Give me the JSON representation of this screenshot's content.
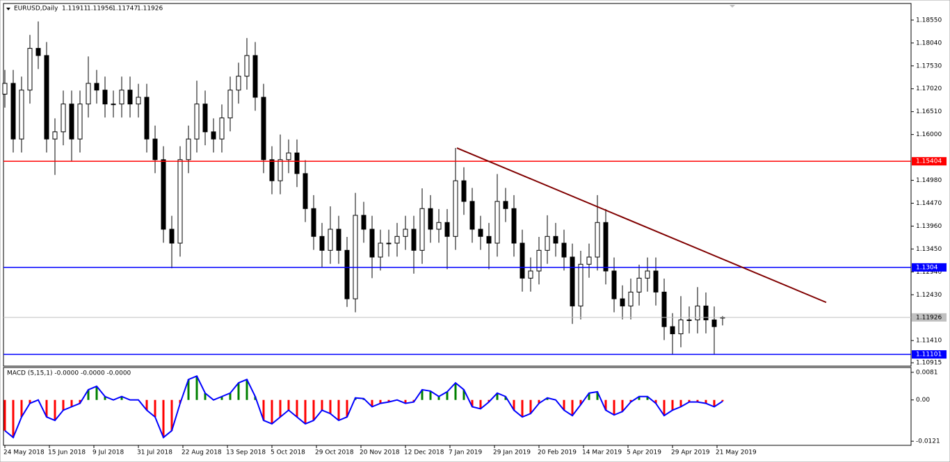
{
  "chart_data": [
    {
      "type": "candlestick",
      "symbol_label": "EURUSD,Daily",
      "x": [
        0,
        3,
        6,
        9,
        12,
        15,
        18,
        21,
        24,
        27,
        30,
        33,
        36,
        39,
        42,
        45,
        48,
        51,
        54,
        57,
        60,
        63,
        66,
        69,
        72,
        75,
        78,
        81,
        84,
        87,
        90,
        93,
        96,
        99,
        102,
        105,
        108,
        111,
        114,
        117,
        120,
        123,
        126,
        129,
        132,
        135,
        138,
        141,
        144,
        147,
        150,
        153,
        156,
        159,
        162,
        165,
        168,
        171,
        174,
        177,
        180,
        183,
        186,
        189,
        192,
        195,
        198,
        201,
        204,
        207,
        210,
        213,
        216,
        219,
        222,
        225,
        228,
        231,
        234,
        237,
        240,
        243,
        246,
        249,
        252,
        255,
        258
      ],
      "open": [
        1.169,
        1.1714,
        1.159,
        1.1699,
        1.1792,
        1.1776,
        1.159,
        1.1606,
        1.1668,
        1.159,
        1.1668,
        1.1714,
        1.1699,
        1.1668,
        1.1668,
        1.1699,
        1.1668,
        1.1683,
        1.159,
        1.1544,
        1.1389,
        1.1358,
        1.1544,
        1.159,
        1.1668,
        1.1606,
        1.159,
        1.1637,
        1.1699,
        1.173,
        1.1776,
        1.1683,
        1.1544,
        1.1497,
        1.1544,
        1.1559,
        1.1513,
        1.1435,
        1.1373,
        1.1342,
        1.1389,
        1.1342,
        1.1234,
        1.142,
        1.1389,
        1.1327,
        1.1358,
        1.1358,
        1.1373,
        1.1389,
        1.1342,
        1.1435,
        1.1389,
        1.1404,
        1.1373,
        1.1497,
        1.1451,
        1.1389,
        1.1373,
        1.1358,
        1.1451,
        1.1435,
        1.1358,
        1.128,
        1.1296,
        1.1342,
        1.1373,
        1.1358,
        1.1327,
        1.1218,
        1.1311,
        1.1327,
        1.1404,
        1.1296,
        1.1234,
        1.1218,
        1.1249,
        1.128,
        1.1296,
        1.1249,
        1.1172,
        1.1156,
        1.1187,
        1.1187,
        1.1218,
        1.1187,
        1.11911
      ],
      "high": [
        1.1744,
        1.1744,
        1.1729,
        1.1822,
        1.1852,
        1.1806,
        1.1636,
        1.1698,
        1.1698,
        1.1698,
        1.1774,
        1.1744,
        1.1729,
        1.1698,
        1.1729,
        1.1729,
        1.1713,
        1.1713,
        1.162,
        1.1574,
        1.1419,
        1.1574,
        1.162,
        1.172,
        1.1698,
        1.1636,
        1.1667,
        1.1729,
        1.176,
        1.1815,
        1.1806,
        1.1713,
        1.1574,
        1.16,
        1.1589,
        1.1589,
        1.1543,
        1.1465,
        1.1403,
        1.144,
        1.1419,
        1.1372,
        1.147,
        1.145,
        1.1419,
        1.1388,
        1.1388,
        1.1403,
        1.1419,
        1.1419,
        1.148,
        1.1465,
        1.1434,
        1.1434,
        1.157,
        1.1527,
        1.1481,
        1.1419,
        1.1403,
        1.1512,
        1.1481,
        1.1465,
        1.1388,
        1.1326,
        1.1372,
        1.142,
        1.1403,
        1.1388,
        1.1357,
        1.1341,
        1.1357,
        1.1465,
        1.1434,
        1.1326,
        1.1264,
        1.1279,
        1.131,
        1.1326,
        1.1326,
        1.1279,
        1.1202,
        1.124,
        1.1217,
        1.126,
        1.1248,
        1.1217,
        1.11956
      ],
      "low": [
        1.166,
        1.156,
        1.156,
        1.1669,
        1.1746,
        1.156,
        1.151,
        1.1576,
        1.154,
        1.156,
        1.1638,
        1.1669,
        1.1638,
        1.1638,
        1.1638,
        1.1638,
        1.1638,
        1.156,
        1.1514,
        1.1359,
        1.1302,
        1.1328,
        1.1514,
        1.156,
        1.1576,
        1.156,
        1.156,
        1.1607,
        1.1669,
        1.17,
        1.1653,
        1.1514,
        1.1467,
        1.1467,
        1.1514,
        1.1483,
        1.1405,
        1.1343,
        1.1304,
        1.1312,
        1.1312,
        1.1216,
        1.1204,
        1.1359,
        1.128,
        1.1297,
        1.1328,
        1.1328,
        1.1343,
        1.129,
        1.1312,
        1.1359,
        1.1359,
        1.13,
        1.1343,
        1.1421,
        1.1359,
        1.1343,
        1.13,
        1.1328,
        1.1405,
        1.1328,
        1.125,
        1.125,
        1.1266,
        1.1312,
        1.1328,
        1.1297,
        1.1178,
        1.1188,
        1.1281,
        1.1297,
        1.1266,
        1.1204,
        1.1188,
        1.1188,
        1.1219,
        1.125,
        1.1219,
        1.1142,
        1.111,
        1.1126,
        1.1157,
        1.1157,
        1.1157,
        1.111,
        1.11747
      ],
      "close": [
        1.1714,
        1.159,
        1.1699,
        1.1792,
        1.1776,
        1.159,
        1.1606,
        1.1668,
        1.159,
        1.1668,
        1.1714,
        1.1699,
        1.1668,
        1.1668,
        1.1699,
        1.1668,
        1.1683,
        1.159,
        1.1544,
        1.1389,
        1.1358,
        1.1544,
        1.159,
        1.1668,
        1.1606,
        1.159,
        1.1637,
        1.1699,
        1.173,
        1.1776,
        1.1683,
        1.1544,
        1.1497,
        1.1544,
        1.1559,
        1.1513,
        1.1435,
        1.1373,
        1.1342,
        1.1389,
        1.1342,
        1.1234,
        1.142,
        1.1389,
        1.1327,
        1.1358,
        1.1358,
        1.1373,
        1.1389,
        1.1342,
        1.1435,
        1.1389,
        1.1404,
        1.1373,
        1.1497,
        1.1451,
        1.1389,
        1.1373,
        1.1358,
        1.1451,
        1.1435,
        1.1358,
        1.128,
        1.1296,
        1.1342,
        1.1373,
        1.1358,
        1.1327,
        1.1218,
        1.1311,
        1.1327,
        1.1404,
        1.1296,
        1.1234,
        1.1218,
        1.1249,
        1.128,
        1.1296,
        1.1249,
        1.1172,
        1.1156,
        1.1187,
        1.1187,
        1.1218,
        1.1187,
        1.1172,
        1.11926
      ],
      "up_color": "#ffffff",
      "down_color": "#000000",
      "last_price_color": "#c0c0c0",
      "xlim": [
        -0.5,
        325.75
      ],
      "xticks": [
        {
          "value": 0,
          "label": "24 May 2018"
        },
        {
          "value": 16,
          "label": "15 Jun 2018"
        },
        {
          "value": 32,
          "label": "9 Jul 2018"
        },
        {
          "value": 48,
          "label": "31 Jul 2018"
        },
        {
          "value": 64,
          "label": "22 Aug 2018"
        },
        {
          "value": 80,
          "label": "13 Sep 2018"
        },
        {
          "value": 96,
          "label": "5 Oct 2018"
        },
        {
          "value": 112,
          "label": "29 Oct 2018"
        },
        {
          "value": 128,
          "label": "20 Nov 2018"
        },
        {
          "value": 144,
          "label": "12 Dec 2018"
        },
        {
          "value": 160,
          "label": "7 Jan 2019"
        },
        {
          "value": 176,
          "label": "29 Jan 2019"
        },
        {
          "value": 192,
          "label": "20 Feb 2019"
        },
        {
          "value": 208,
          "label": "14 Mar 2019"
        },
        {
          "value": 224,
          "label": "5 Apr 2019"
        },
        {
          "value": 240,
          "label": "29 Apr 2019"
        },
        {
          "value": 256,
          "label": "21 May 2019"
        }
      ],
      "ylim": [
        1.1084,
        1.1892
      ],
      "yticks": [
        {
          "value": 1.1855,
          "label": "1.18550"
        },
        {
          "value": 1.1804,
          "label": "1.18040"
        },
        {
          "value": 1.1753,
          "label": "1.17530"
        },
        {
          "value": 1.1702,
          "label": "1.17020"
        },
        {
          "value": 1.1651,
          "label": "1.16510"
        },
        {
          "value": 1.16,
          "label": "1.16000"
        },
        {
          "value": 1.1498,
          "label": "1.14980"
        },
        {
          "value": 1.1447,
          "label": "1.14470"
        },
        {
          "value": 1.1396,
          "label": "1.13960"
        },
        {
          "value": 1.1345,
          "label": "1.13450"
        },
        {
          "value": 1.1294,
          "label": "1.12940"
        },
        {
          "value": 1.1243,
          "label": "1.12430"
        },
        {
          "value": 1.1141,
          "label": "1.11410"
        },
        {
          "value": 1.10915,
          "label": "1.10915"
        }
      ],
      "levels": [
        {
          "value": 1.15404,
          "color": "#ff0000"
        },
        {
          "value": 1.1304,
          "color": "#0000ff"
        },
        {
          "value": 1.11101,
          "color": "#0000ff"
        }
      ],
      "trendline": {
        "x": [
          162.5,
          295.25
        ],
        "y": [
          1.157,
          1.1226
        ],
        "color": "#800000"
      }
    },
    {
      "type": "macd",
      "title": "MACD (5,15,1) -0.0000 -0.0000 -0.0000",
      "x": [
        0,
        3,
        6,
        9,
        12,
        15,
        18,
        21,
        24,
        27,
        30,
        33,
        36,
        39,
        42,
        45,
        48,
        51,
        54,
        57,
        60,
        63,
        66,
        69,
        72,
        75,
        78,
        81,
        84,
        87,
        90,
        93,
        96,
        99,
        102,
        105,
        108,
        111,
        114,
        117,
        120,
        123,
        126,
        129,
        132,
        135,
        138,
        141,
        144,
        147,
        150,
        153,
        156,
        159,
        162,
        165,
        168,
        171,
        174,
        177,
        180,
        183,
        186,
        189,
        192,
        195,
        198,
        201,
        204,
        207,
        210,
        213,
        216,
        219,
        222,
        225,
        228,
        231,
        234,
        237,
        240,
        243,
        246,
        249,
        252,
        255,
        258
      ],
      "values": [
        -0.009,
        -0.011,
        -0.005,
        -0.001,
        0,
        -0.005,
        -0.006,
        -0.003,
        -0.002,
        -0.001,
        0.003,
        0.004,
        0.001,
        0,
        0.001,
        0,
        0,
        -0.003,
        -0.005,
        -0.011,
        -0.009,
        -0.001,
        0.006,
        0.007,
        0.002,
        0,
        0.001,
        0.002,
        0.005,
        0.006,
        0.001,
        -0.006,
        -0.007,
        -0.005,
        -0.003,
        -0.005,
        -0.007,
        -0.006,
        -0.003,
        -0.004,
        -0.006,
        -0.005,
        0.0006,
        0.0004,
        -0.002,
        -0.001,
        -0.0006,
        0,
        -0.001,
        -0.0006,
        0.003,
        0.0026,
        0.001,
        0.0024,
        0.005,
        0.003,
        -0.002,
        -0.0026,
        -0.0006,
        0.002,
        0.001,
        -0.003,
        -0.005,
        -0.004,
        -0.001,
        0.0006,
        0,
        -0.003,
        -0.0046,
        -0.0014,
        0.002,
        0.0024,
        -0.003,
        -0.0044,
        -0.0034,
        -0.0006,
        0.001,
        0.001,
        -0.001,
        -0.0046,
        -0.003,
        -0.002,
        -0.0006,
        -0.0006,
        -0.001,
        -0.002,
        -0.0004
      ],
      "pos_color": "#008000",
      "neg_color": "#ff0000",
      "line_color": "#0000ff",
      "xlim": [
        -0.5,
        325.75
      ],
      "ylim": [
        -0.0133,
        0.0095
      ],
      "yticks": [
        0.0081,
        {
          "value": 0,
          "label": "0.00"
        },
        -0.0121
      ]
    }
  ]
}
